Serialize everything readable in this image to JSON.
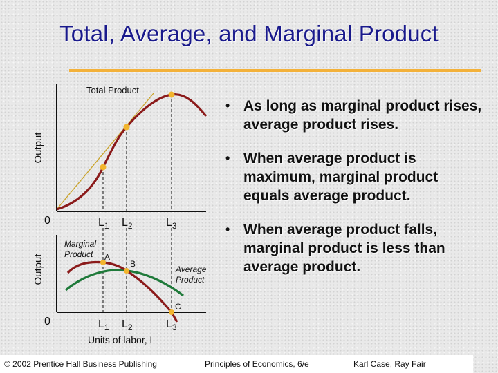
{
  "slide": {
    "title": "Total, Average, and Marginal Product"
  },
  "top_chart": {
    "curve_label": "Total Product",
    "ylabel": "Output",
    "origin": "0",
    "ticks": [
      {
        "main": "L",
        "sub": "1"
      },
      {
        "main": "L",
        "sub": "2"
      },
      {
        "main": "L",
        "sub": "3"
      }
    ]
  },
  "bottom_chart": {
    "ylabel": "Output",
    "origin": "0",
    "marginal_label_line1": "Marginal",
    "marginal_label_line2": "Product",
    "average_label_line1": "Average",
    "average_label_line2": "Product",
    "points": [
      "A",
      "B",
      "C"
    ],
    "ticks": [
      {
        "main": "L",
        "sub": "1"
      },
      {
        "main": "L",
        "sub": "2"
      },
      {
        "main": "L",
        "sub": "3"
      }
    ],
    "xlabel": "Units of labor, L"
  },
  "colors": {
    "total_product": "#8b1a1a",
    "marginal_product": "#8b1a1a",
    "average_product": "#1f7a3a",
    "point": "#f2b52e",
    "tangent": "#c9a227",
    "title": "#1a1a8c",
    "rule": "#f3b13a"
  },
  "bullets": [
    "As long as marginal product rises, average product rises.",
    "When average product is maximum, marginal product equals average product.",
    "When average product falls, marginal product is less than average product."
  ],
  "footer": {
    "left": "© 2002 Prentice Hall Business Publishing",
    "center": "Principles of Economics, 6/e",
    "right": "Karl Case, Ray Fair"
  }
}
